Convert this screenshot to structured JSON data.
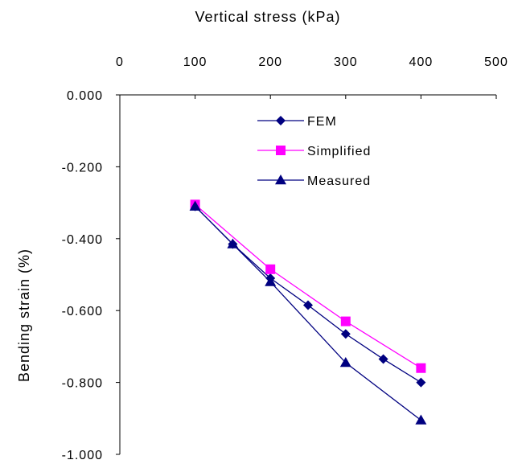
{
  "chart_data": {
    "type": "line",
    "title": "",
    "xlabel": "Vertical stress (kPa)",
    "ylabel": "Bending strain (%)",
    "xlim": [
      0,
      500
    ],
    "ylim": [
      -1.0,
      0.0
    ],
    "x_axis_position": "top",
    "x_ticks": [
      0,
      100,
      200,
      300,
      400,
      500
    ],
    "x_tick_labels": [
      "0",
      "100",
      "200",
      "300",
      "400",
      "500"
    ],
    "y_ticks": [
      0,
      -0.2,
      -0.4,
      -0.6,
      -0.8,
      -1.0
    ],
    "y_tick_labels": [
      "0.000",
      "-0.200",
      "-0.400",
      "-0.600",
      "-0.800",
      "-1.000"
    ],
    "grid": false,
    "legend_position": "top-center",
    "series": [
      {
        "name": "FEM",
        "color": "#000080",
        "marker": "diamond",
        "x": [
          100,
          150,
          200,
          250,
          300,
          350,
          400
        ],
        "y": [
          -0.31,
          -0.415,
          -0.51,
          -0.585,
          -0.665,
          -0.735,
          -0.8
        ]
      },
      {
        "name": "Simplified",
        "color": "#FF00FF",
        "line_color": "#FF00FF",
        "marker": "square",
        "x": [
          100,
          200,
          300,
          400
        ],
        "y": [
          -0.305,
          -0.485,
          -0.63,
          -0.76
        ]
      },
      {
        "name": "Measured",
        "color": "#000080",
        "marker": "triangle",
        "x": [
          100,
          150,
          200,
          300,
          400
        ],
        "y": [
          -0.31,
          -0.415,
          -0.52,
          -0.745,
          -0.905
        ]
      }
    ]
  }
}
